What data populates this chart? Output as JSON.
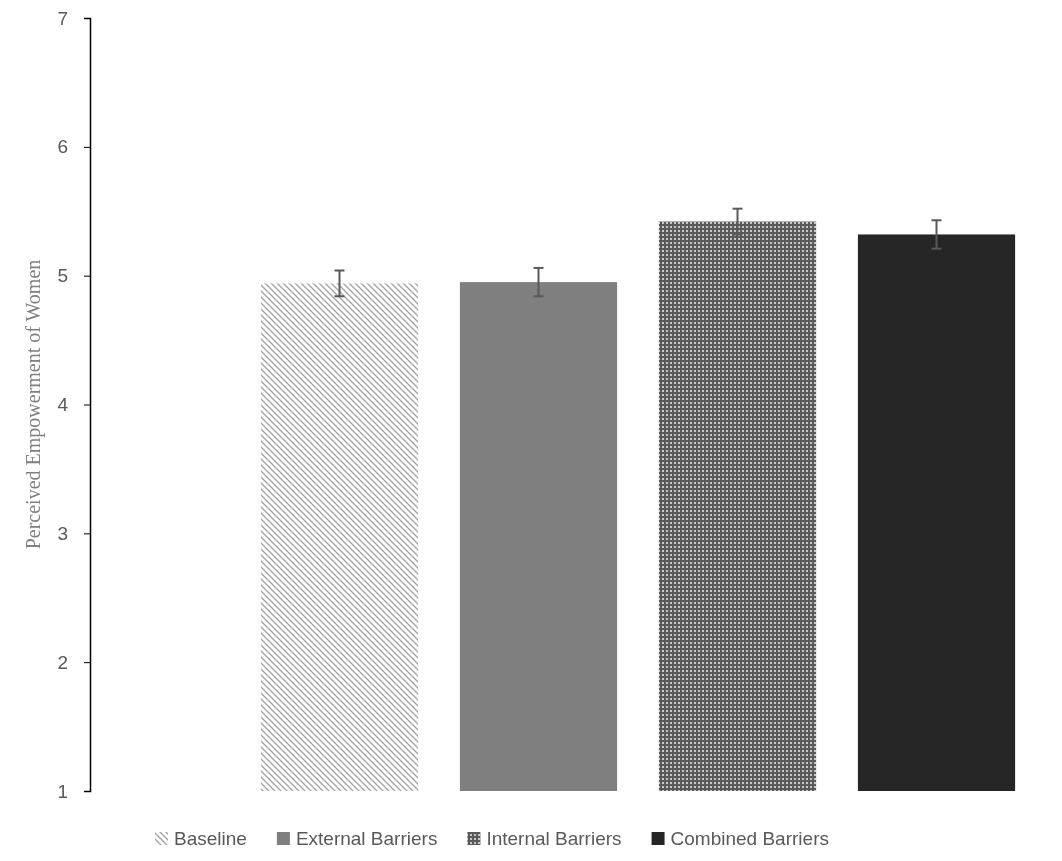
{
  "chart_data": {
    "type": "bar",
    "ylabel": "Perceived Empowerment of Women",
    "categories": [
      null
    ],
    "series": [
      {
        "name": "Baseline",
        "color": "#a6a6a6",
        "values": [
          4.94
        ],
        "errors": [
          0.1
        ]
      },
      {
        "name": "External Barriers",
        "color": "#7f7f7f",
        "values": [
          4.95
        ],
        "errors": [
          0.11
        ]
      },
      {
        "name": "Internal Barriers",
        "color": "#595959",
        "values": [
          5.42
        ],
        "errors": [
          0.1
        ]
      },
      {
        "name": "Combined Barriers",
        "color": "#262626",
        "values": [
          5.32
        ],
        "errors": [
          0.11
        ]
      }
    ],
    "ylim": [
      1,
      7
    ],
    "yticks": [
      1,
      2,
      3,
      4,
      5,
      6,
      7
    ],
    "grid": false,
    "legend": "bottom"
  }
}
